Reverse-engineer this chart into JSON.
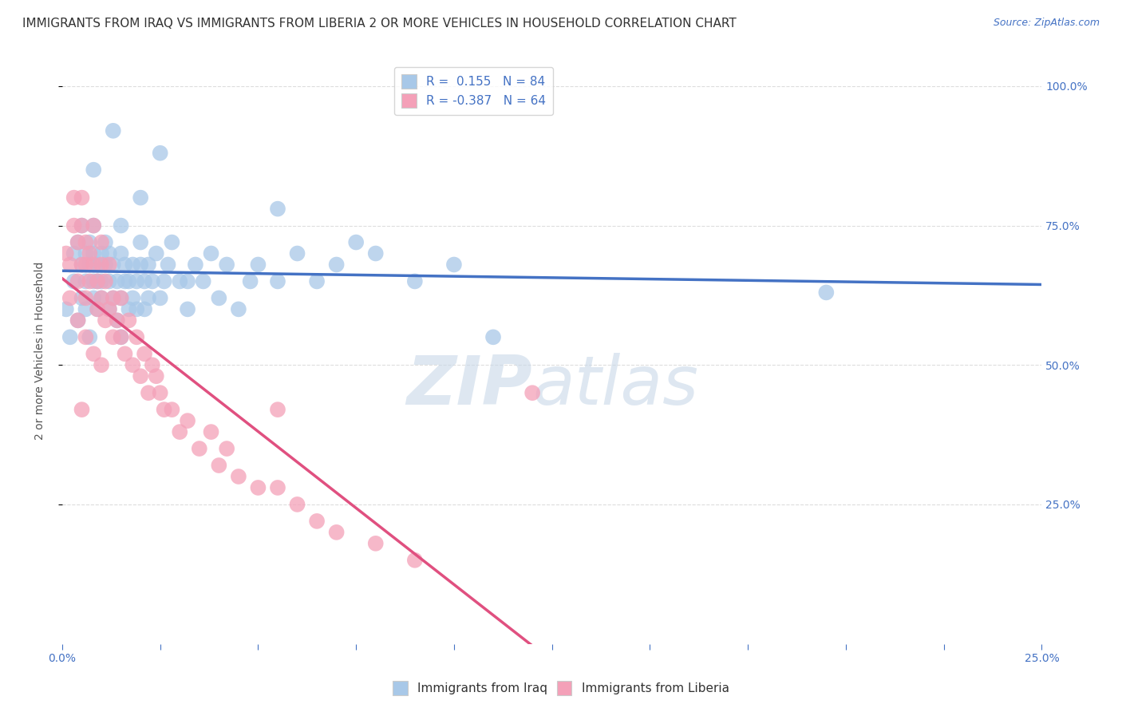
{
  "title": "IMMIGRANTS FROM IRAQ VS IMMIGRANTS FROM LIBERIA 2 OR MORE VEHICLES IN HOUSEHOLD CORRELATION CHART",
  "source": "Source: ZipAtlas.com",
  "ylabel": "2 or more Vehicles in Household",
  "ylabel_right_ticks": [
    "100.0%",
    "75.0%",
    "50.0%",
    "25.0%"
  ],
  "ylabel_right_vals": [
    1.0,
    0.75,
    0.5,
    0.25
  ],
  "iraq_color": "#a8c8e8",
  "liberia_color": "#f4a0b8",
  "iraq_line_color": "#4472c4",
  "liberia_line_color": "#e05080",
  "R_iraq": 0.155,
  "N_iraq": 84,
  "R_liberia": -0.387,
  "N_liberia": 64,
  "xlim": [
    0.0,
    0.25
  ],
  "ylim": [
    0.0,
    1.05
  ],
  "iraq_x": [
    0.001,
    0.002,
    0.003,
    0.003,
    0.004,
    0.004,
    0.005,
    0.005,
    0.005,
    0.006,
    0.006,
    0.006,
    0.007,
    0.007,
    0.007,
    0.008,
    0.008,
    0.008,
    0.008,
    0.009,
    0.009,
    0.009,
    0.01,
    0.01,
    0.01,
    0.011,
    0.011,
    0.012,
    0.012,
    0.012,
    0.013,
    0.013,
    0.014,
    0.014,
    0.015,
    0.015,
    0.015,
    0.016,
    0.016,
    0.017,
    0.017,
    0.018,
    0.018,
    0.019,
    0.019,
    0.02,
    0.02,
    0.021,
    0.021,
    0.022,
    0.022,
    0.023,
    0.024,
    0.025,
    0.026,
    0.027,
    0.028,
    0.03,
    0.032,
    0.034,
    0.036,
    0.038,
    0.04,
    0.042,
    0.045,
    0.048,
    0.05,
    0.055,
    0.06,
    0.065,
    0.07,
    0.075,
    0.08,
    0.09,
    0.1,
    0.11,
    0.025,
    0.013,
    0.008,
    0.055,
    0.02,
    0.015,
    0.032,
    0.195
  ],
  "iraq_y": [
    0.6,
    0.55,
    0.65,
    0.7,
    0.58,
    0.72,
    0.68,
    0.62,
    0.75,
    0.6,
    0.65,
    0.7,
    0.55,
    0.68,
    0.72,
    0.62,
    0.65,
    0.7,
    0.75,
    0.6,
    0.65,
    0.68,
    0.7,
    0.62,
    0.65,
    0.68,
    0.72,
    0.6,
    0.65,
    0.7,
    0.62,
    0.68,
    0.58,
    0.65,
    0.7,
    0.62,
    0.75,
    0.65,
    0.68,
    0.6,
    0.65,
    0.62,
    0.68,
    0.6,
    0.65,
    0.68,
    0.72,
    0.6,
    0.65,
    0.62,
    0.68,
    0.65,
    0.7,
    0.62,
    0.65,
    0.68,
    0.72,
    0.65,
    0.6,
    0.68,
    0.65,
    0.7,
    0.62,
    0.68,
    0.6,
    0.65,
    0.68,
    0.65,
    0.7,
    0.65,
    0.68,
    0.72,
    0.7,
    0.65,
    0.68,
    0.55,
    0.88,
    0.92,
    0.85,
    0.78,
    0.8,
    0.55,
    0.65,
    0.63
  ],
  "liberia_x": [
    0.001,
    0.002,
    0.003,
    0.003,
    0.004,
    0.004,
    0.005,
    0.005,
    0.005,
    0.006,
    0.006,
    0.006,
    0.007,
    0.007,
    0.008,
    0.008,
    0.009,
    0.009,
    0.01,
    0.01,
    0.01,
    0.011,
    0.011,
    0.012,
    0.012,
    0.013,
    0.013,
    0.014,
    0.015,
    0.015,
    0.016,
    0.017,
    0.018,
    0.019,
    0.02,
    0.021,
    0.022,
    0.023,
    0.024,
    0.025,
    0.026,
    0.028,
    0.03,
    0.032,
    0.035,
    0.038,
    0.04,
    0.042,
    0.045,
    0.05,
    0.055,
    0.06,
    0.065,
    0.07,
    0.08,
    0.09,
    0.002,
    0.004,
    0.006,
    0.008,
    0.01,
    0.005,
    0.055,
    0.12
  ],
  "liberia_y": [
    0.7,
    0.68,
    0.75,
    0.8,
    0.65,
    0.72,
    0.68,
    0.75,
    0.8,
    0.62,
    0.68,
    0.72,
    0.65,
    0.7,
    0.68,
    0.75,
    0.6,
    0.65,
    0.62,
    0.68,
    0.72,
    0.58,
    0.65,
    0.6,
    0.68,
    0.55,
    0.62,
    0.58,
    0.55,
    0.62,
    0.52,
    0.58,
    0.5,
    0.55,
    0.48,
    0.52,
    0.45,
    0.5,
    0.48,
    0.45,
    0.42,
    0.42,
    0.38,
    0.4,
    0.35,
    0.38,
    0.32,
    0.35,
    0.3,
    0.28,
    0.28,
    0.25,
    0.22,
    0.2,
    0.18,
    0.15,
    0.62,
    0.58,
    0.55,
    0.52,
    0.5,
    0.42,
    0.42,
    0.45
  ],
  "background_color": "#ffffff",
  "grid_color": "#dddddd",
  "title_fontsize": 11,
  "axis_label_fontsize": 10,
  "tick_fontsize": 10,
  "legend_fontsize": 11,
  "watermark_zip": "ZIP",
  "watermark_atlas": "atlas",
  "watermark_color": "#c8d8e8",
  "watermark_alpha": 0.6
}
